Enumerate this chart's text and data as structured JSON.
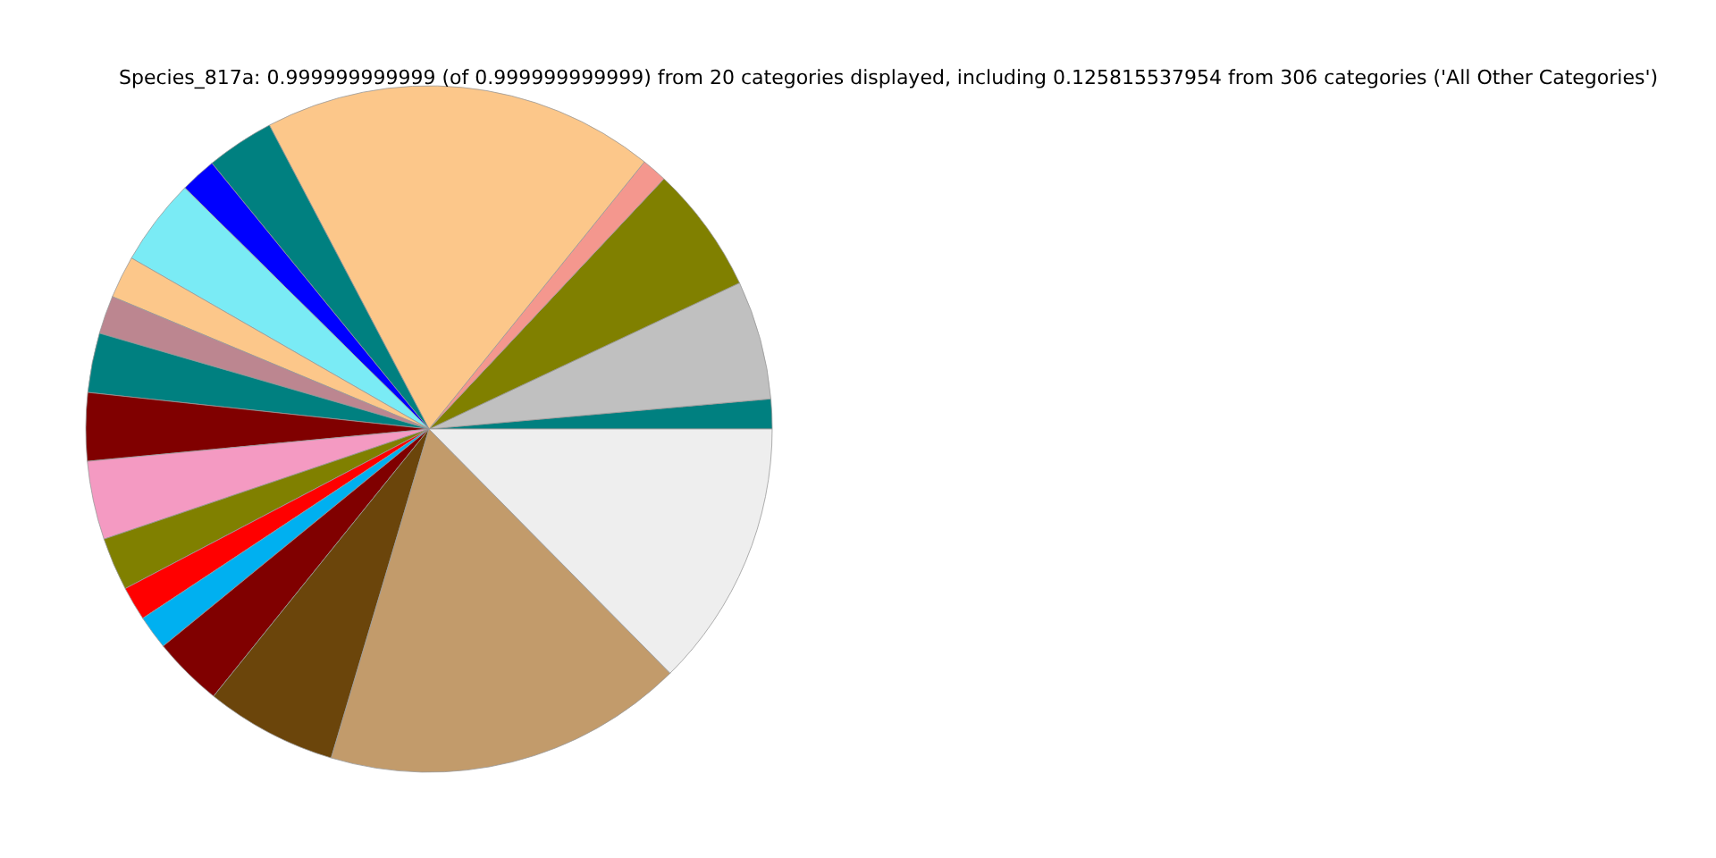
{
  "chart_data": {
    "type": "pie",
    "title": "Species_817a: 0.999999999999 (of 0.999999999999) from 20 categories displayed, including 0.125815537954 from 306 categories ('All Other Categories')",
    "categories": [
      null,
      null,
      null,
      null,
      null,
      null,
      null,
      null,
      null,
      null,
      null,
      null,
      null,
      null,
      null,
      null,
      null,
      null,
      null,
      null
    ],
    "values": [
      1.4,
      5.6,
      6.0,
      1.2,
      18.5,
      3.2,
      1.7,
      4.1,
      2.0,
      1.8,
      2.8,
      3.2,
      3.7,
      2.5,
      1.6,
      1.6,
      3.3,
      6.2,
      17.0,
      12.6
    ],
    "colors": [
      "#008080",
      "#c0c0c0",
      "#808000",
      "#f4978e",
      "#fcc78a",
      "#008080",
      "#0000ff",
      "#7aebf5",
      "#fcc78a",
      "#bc8690",
      "#008080",
      "#800000",
      "#f49ac2",
      "#808000",
      "#ff0000",
      "#00b0f0",
      "#800000",
      "#6b450b",
      "#c29b6b",
      "#eeeeee"
    ]
  }
}
